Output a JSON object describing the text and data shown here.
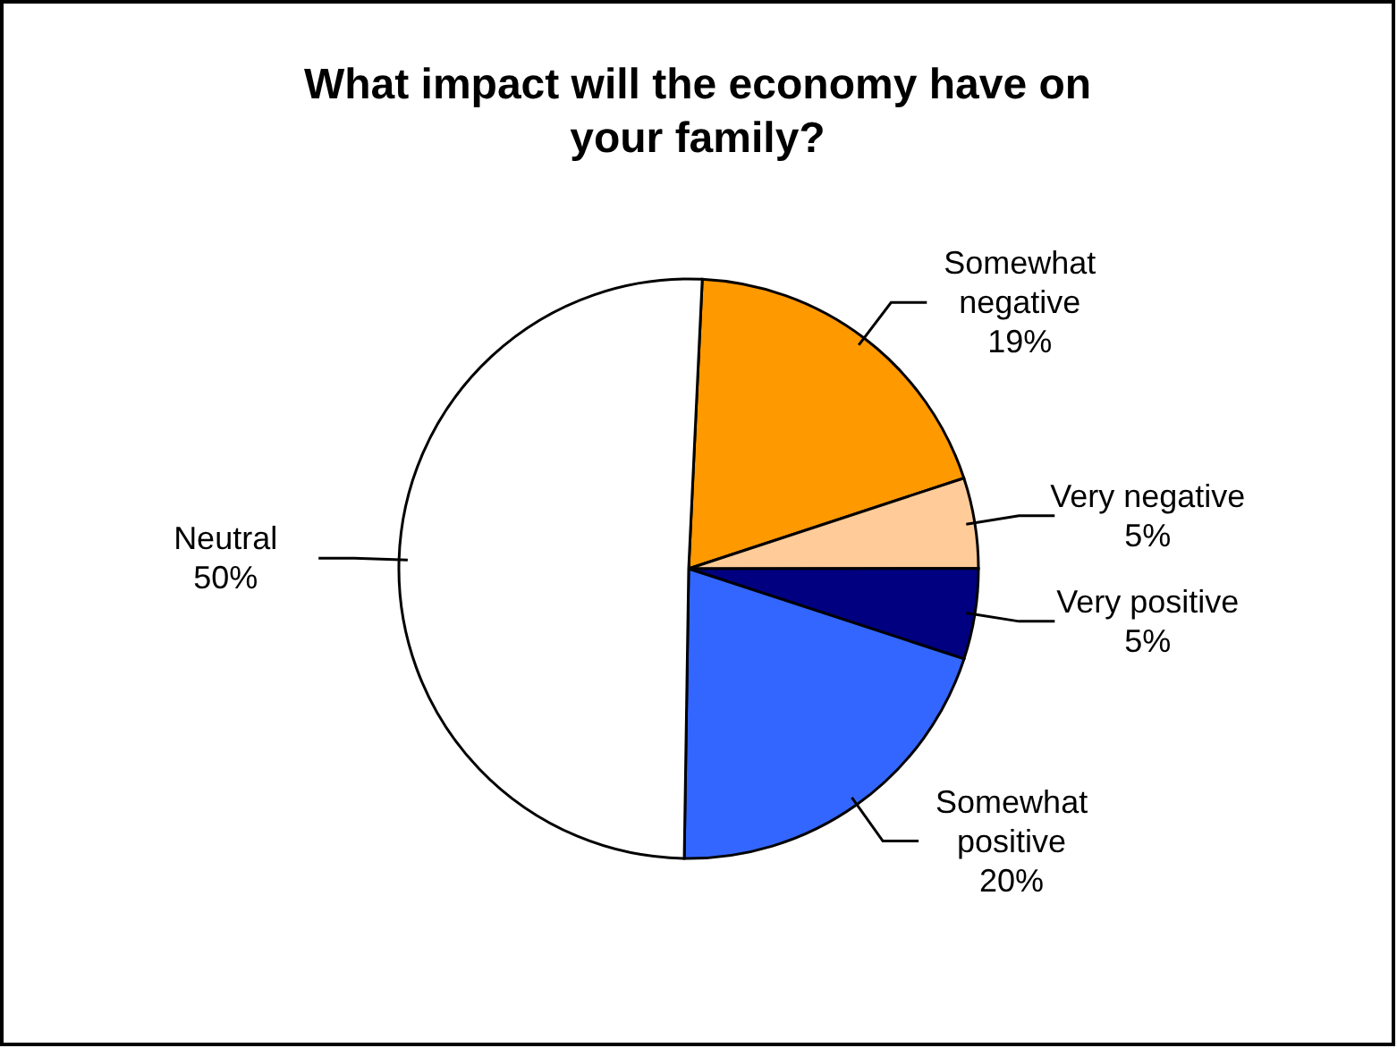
{
  "chart_data": {
    "type": "pie",
    "title": "What impact will the economy have on your family?",
    "categories": [
      "Somewhat negative",
      "Very negative",
      "Very positive",
      "Somewhat positive",
      "Neutral"
    ],
    "values": [
      19,
      5,
      5,
      20,
      50
    ],
    "colors": [
      "#ff9900",
      "#ffcc99",
      "#000080",
      "#3366ff",
      "#ffffff"
    ],
    "value_labels": [
      "19%",
      "5%",
      "5%",
      "20%",
      "50%"
    ]
  }
}
